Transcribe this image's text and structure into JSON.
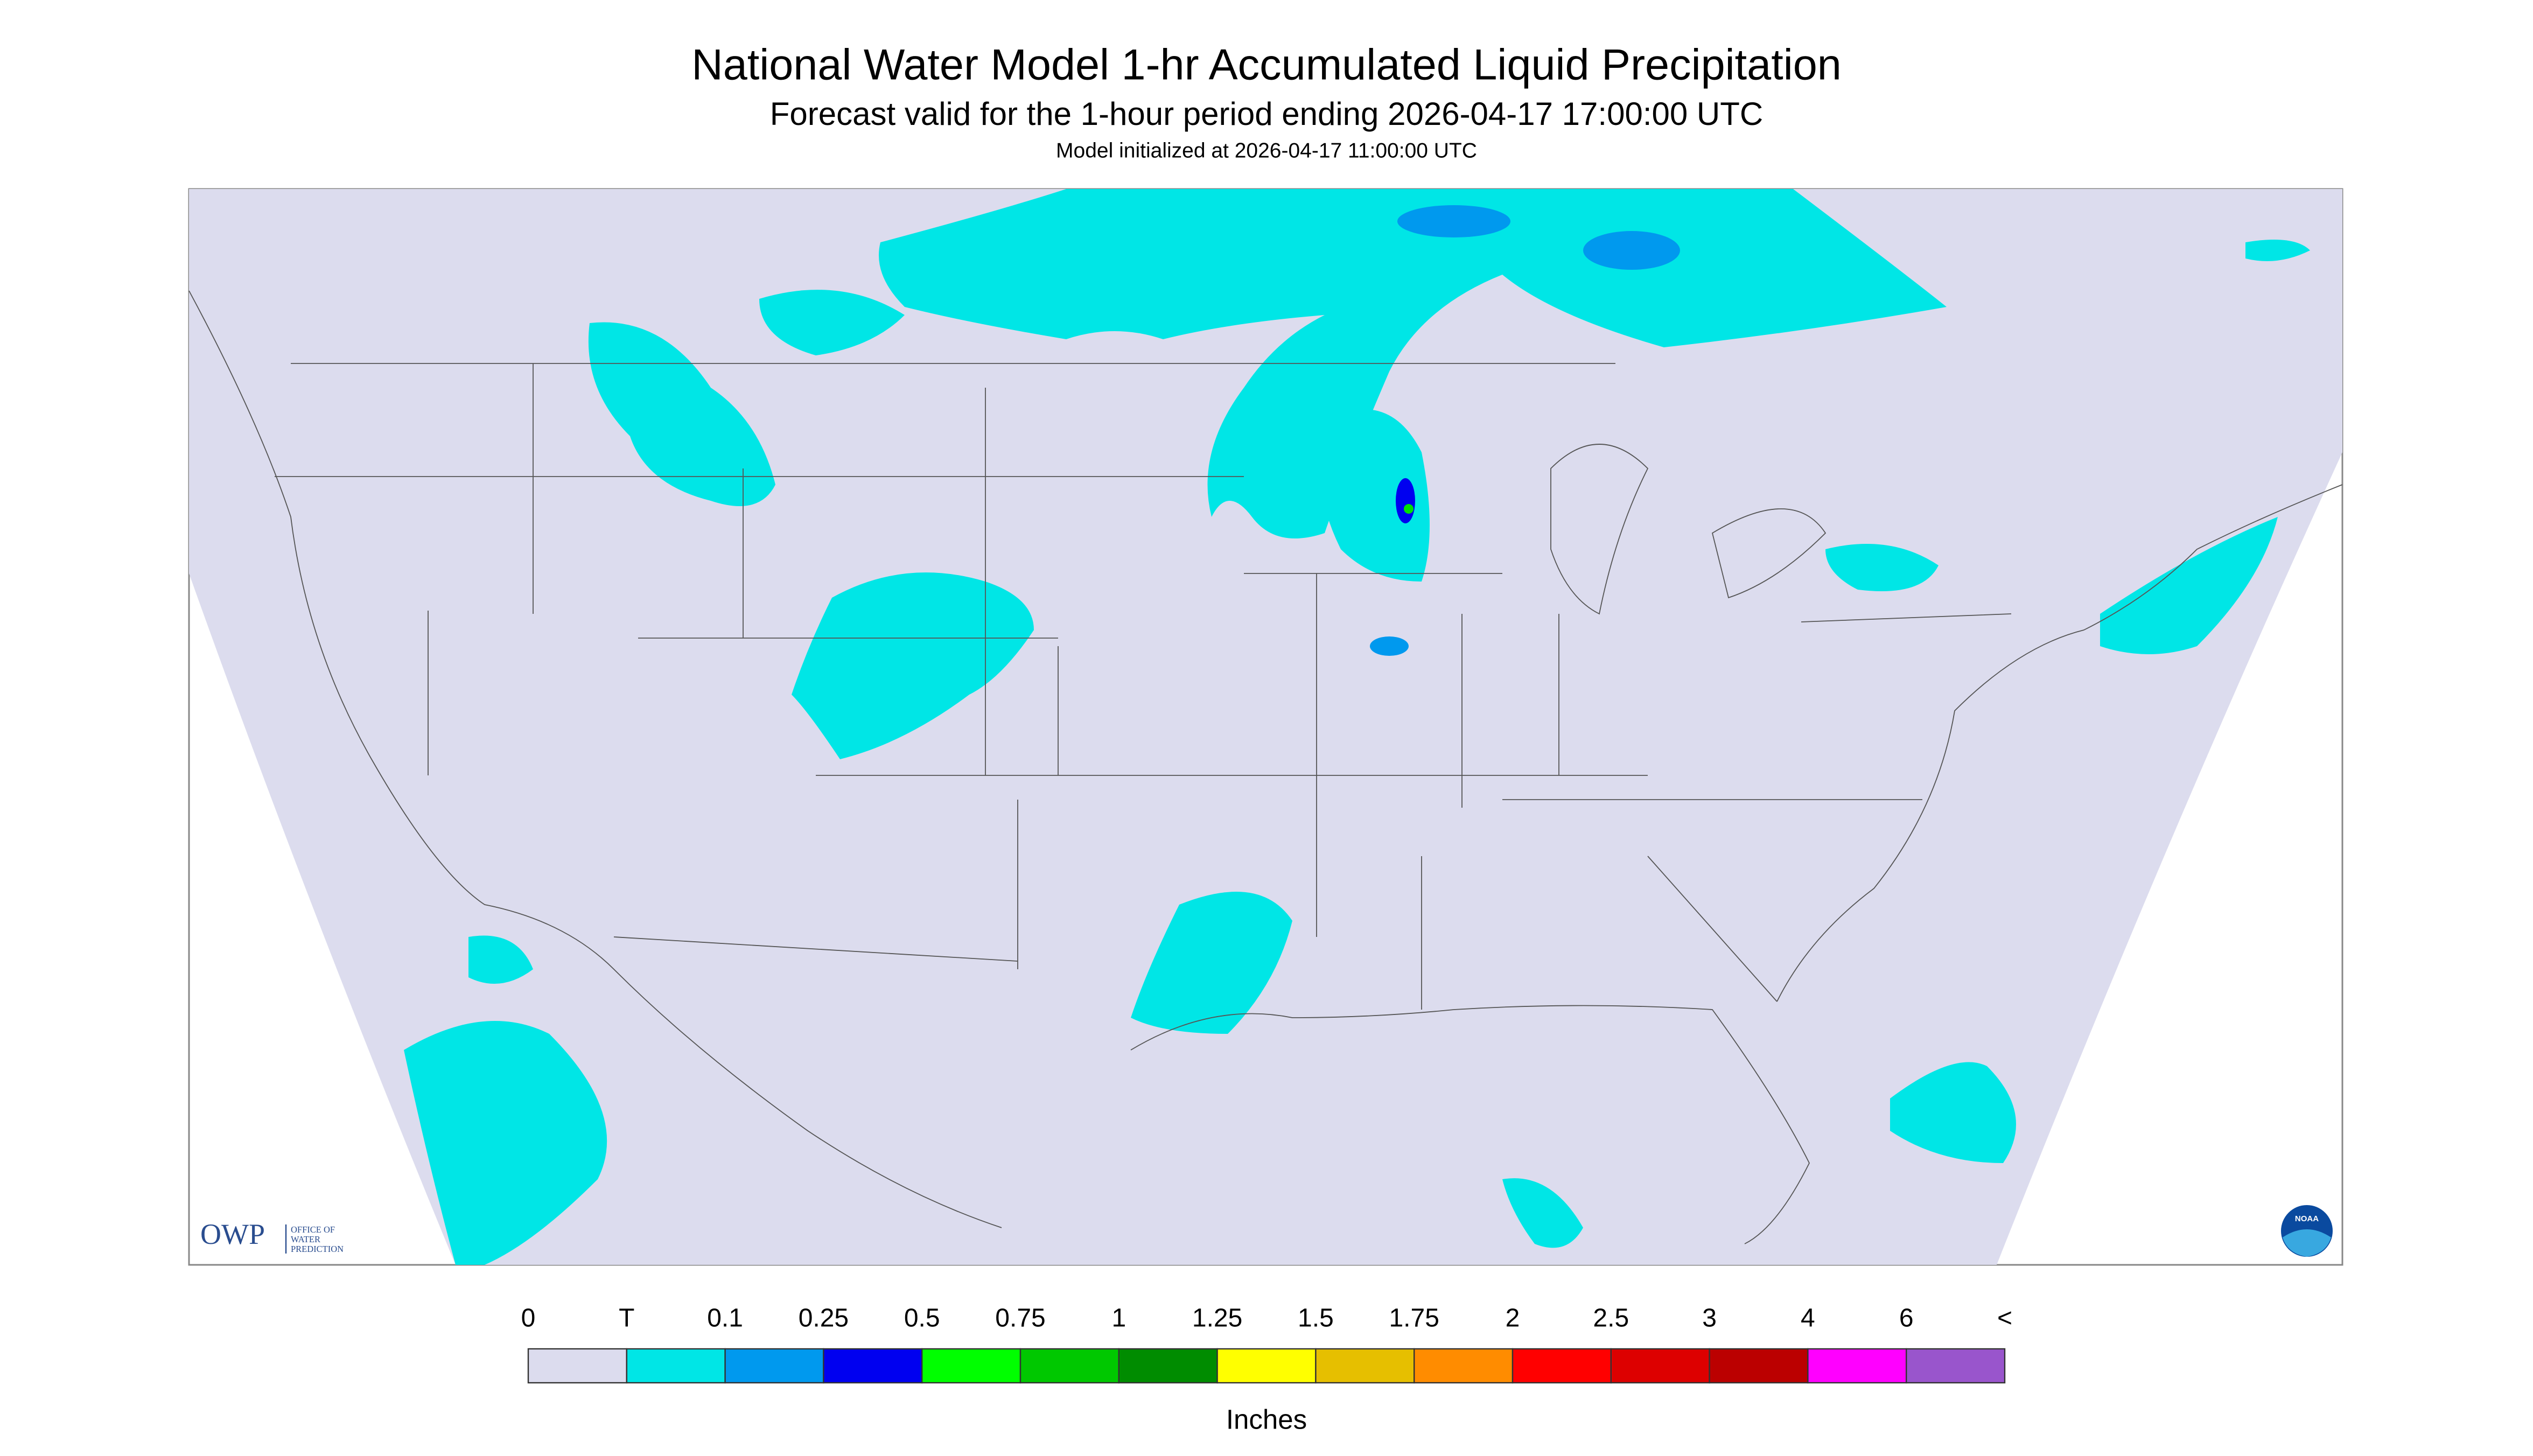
{
  "header": {
    "title": "National Water Model 1-hr Accumulated Liquid Precipitation",
    "subtitle": "Forecast valid for the 1-hour period ending 2026-04-17 17:00:00 UTC",
    "initialized": "Model initialized at 2026-04-17 11:00:00 UTC"
  },
  "logos": {
    "owp": "OWP",
    "owp_name": [
      "OFFICE OF",
      "WATER",
      "PREDICTION"
    ],
    "noaa": "NOAA"
  },
  "legend": {
    "labels": [
      "0",
      "T",
      "0.1",
      "0.25",
      "0.5",
      "0.75",
      "1",
      "1.25",
      "1.5",
      "1.75",
      "2",
      "2.5",
      "3",
      "4",
      "6",
      "<"
    ],
    "colors": [
      "#dcdcee",
      "#00e6e6",
      "#0099ee",
      "#0000f0",
      "#00ff00",
      "#00c800",
      "#008c00",
      "#ffff00",
      "#e6bf00",
      "#ff8c00",
      "#ff0000",
      "#dd0000",
      "#bb0000",
      "#ff00ff",
      "#9955cc"
    ],
    "units": "Inches"
  }
}
